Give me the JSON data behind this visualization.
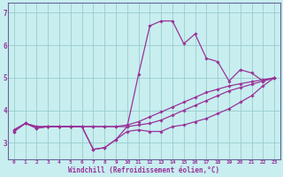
{
  "xlabel": "Windchill (Refroidissement éolien,°C)",
  "background_color": "#c8eef0",
  "grid_color": "#99cccc",
  "line_color": "#993399",
  "xlim": [
    -0.5,
    23.5
  ],
  "ylim": [
    2.5,
    7.3
  ],
  "xticks": [
    0,
    1,
    2,
    3,
    4,
    5,
    6,
    7,
    8,
    9,
    10,
    11,
    12,
    13,
    14,
    15,
    16,
    17,
    18,
    19,
    20,
    21,
    22,
    23
  ],
  "yticks": [
    3,
    4,
    5,
    6,
    7
  ],
  "line1": [
    3.4,
    3.6,
    3.5,
    3.5,
    3.5,
    3.5,
    3.5,
    3.5,
    3.5,
    3.5,
    3.5,
    3.55,
    3.6,
    3.7,
    3.85,
    4.0,
    4.15,
    4.3,
    4.45,
    4.6,
    4.7,
    4.8,
    4.9,
    5.0
  ],
  "line2": [
    3.4,
    3.6,
    3.5,
    3.5,
    3.5,
    3.5,
    3.5,
    3.5,
    3.5,
    3.5,
    3.55,
    3.65,
    3.8,
    3.95,
    4.1,
    4.25,
    4.4,
    4.55,
    4.65,
    4.75,
    4.82,
    4.88,
    4.94,
    5.0
  ],
  "line3_wiggly": [
    3.35,
    3.6,
    3.45,
    3.5,
    3.5,
    3.5,
    3.5,
    2.8,
    2.85,
    3.1,
    3.5,
    5.1,
    6.6,
    6.75,
    6.75,
    6.05,
    6.35,
    5.6,
    5.5,
    4.9,
    5.25,
    5.15,
    4.9,
    5.0
  ],
  "line4_low": [
    3.35,
    3.6,
    3.45,
    3.5,
    3.5,
    3.5,
    3.5,
    2.8,
    2.85,
    3.1,
    3.35,
    3.4,
    3.35,
    3.35,
    3.5,
    3.55,
    3.65,
    3.75,
    3.9,
    4.05,
    4.25,
    4.45,
    4.75,
    5.0
  ]
}
